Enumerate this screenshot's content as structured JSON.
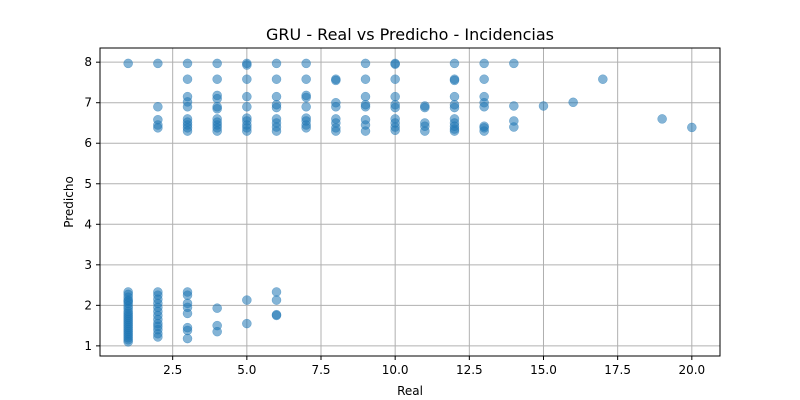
{
  "chart_data": {
    "type": "scatter",
    "title": "GRU - Real vs Predicho - Incidencias",
    "xlabel": "Real",
    "ylabel": "Predicho",
    "xlim": [
      0.05,
      20.95
    ],
    "ylim": [
      0.75,
      8.35
    ],
    "xticks": [
      2.5,
      5.0,
      7.5,
      10.0,
      12.5,
      15.0,
      17.5,
      20.0
    ],
    "xtick_labels": [
      "2.5",
      "5.0",
      "7.5",
      "10.0",
      "12.5",
      "15.0",
      "17.5",
      "20.0"
    ],
    "yticks": [
      1,
      2,
      3,
      4,
      5,
      6,
      7,
      8
    ],
    "ytick_labels": [
      "1",
      "2",
      "3",
      "4",
      "5",
      "6",
      "7",
      "8"
    ],
    "grid": true,
    "marker_color": "#1f77b4",
    "marker_alpha": 0.55,
    "series": [
      {
        "points": [
          [
            1,
            7.97
          ],
          [
            1,
            2.33
          ],
          [
            1,
            2.27
          ],
          [
            1,
            2.2
          ],
          [
            1,
            2.13
          ],
          [
            1,
            2.1
          ],
          [
            1,
            2.05
          ],
          [
            1,
            1.98
          ],
          [
            1,
            1.92
          ],
          [
            1,
            1.85
          ],
          [
            1,
            1.8
          ],
          [
            1,
            1.75
          ],
          [
            1,
            1.7
          ],
          [
            1,
            1.65
          ],
          [
            1,
            1.6
          ],
          [
            1,
            1.55
          ],
          [
            1,
            1.5
          ],
          [
            1,
            1.45
          ],
          [
            1,
            1.4
          ],
          [
            1,
            1.35
          ],
          [
            1,
            1.3
          ],
          [
            1,
            1.25
          ],
          [
            1,
            1.2
          ],
          [
            1,
            1.15
          ],
          [
            1,
            1.1
          ],
          [
            2,
            7.97
          ],
          [
            2,
            6.9
          ],
          [
            2,
            6.58
          ],
          [
            2,
            6.45
          ],
          [
            2,
            6.38
          ],
          [
            2,
            2.33
          ],
          [
            2,
            2.25
          ],
          [
            2,
            2.15
          ],
          [
            2,
            2.05
          ],
          [
            2,
            1.95
          ],
          [
            2,
            1.85
          ],
          [
            2,
            1.75
          ],
          [
            2,
            1.65
          ],
          [
            2,
            1.55
          ],
          [
            2,
            1.48
          ],
          [
            2,
            1.4
          ],
          [
            2,
            1.3
          ],
          [
            2,
            1.22
          ],
          [
            3,
            7.97
          ],
          [
            3,
            7.58
          ],
          [
            3,
            7.15
          ],
          [
            3,
            7.02
          ],
          [
            3,
            6.9
          ],
          [
            3,
            6.6
          ],
          [
            3,
            6.52
          ],
          [
            3,
            6.45
          ],
          [
            3,
            6.38
          ],
          [
            3,
            6.3
          ],
          [
            3,
            2.33
          ],
          [
            3,
            2.25
          ],
          [
            3,
            2.05
          ],
          [
            3,
            1.95
          ],
          [
            3,
            1.8
          ],
          [
            3,
            1.45
          ],
          [
            3,
            1.38
          ],
          [
            3,
            1.18
          ],
          [
            4,
            7.97
          ],
          [
            4,
            7.58
          ],
          [
            4,
            7.18
          ],
          [
            4,
            7.1
          ],
          [
            4,
            6.9
          ],
          [
            4,
            6.85
          ],
          [
            4,
            6.6
          ],
          [
            4,
            6.52
          ],
          [
            4,
            6.45
          ],
          [
            4,
            6.38
          ],
          [
            4,
            6.3
          ],
          [
            4,
            1.93
          ],
          [
            4,
            1.5
          ],
          [
            4,
            1.35
          ],
          [
            5,
            7.97
          ],
          [
            5,
            7.93
          ],
          [
            5,
            7.58
          ],
          [
            5,
            7.15
          ],
          [
            5,
            6.9
          ],
          [
            5,
            6.62
          ],
          [
            5,
            6.55
          ],
          [
            5,
            6.45
          ],
          [
            5,
            6.38
          ],
          [
            5,
            6.3
          ],
          [
            5,
            2.13
          ],
          [
            5,
            1.55
          ],
          [
            6,
            7.97
          ],
          [
            6,
            7.58
          ],
          [
            6,
            7.15
          ],
          [
            6,
            6.95
          ],
          [
            6,
            6.88
          ],
          [
            6,
            6.6
          ],
          [
            6,
            6.5
          ],
          [
            6,
            6.4
          ],
          [
            6,
            6.3
          ],
          [
            6,
            2.33
          ],
          [
            6,
            2.13
          ],
          [
            6,
            1.77
          ],
          [
            6,
            1.75
          ],
          [
            7,
            7.97
          ],
          [
            7,
            7.58
          ],
          [
            7,
            7.18
          ],
          [
            7,
            7.13
          ],
          [
            7,
            6.9
          ],
          [
            7,
            6.62
          ],
          [
            7,
            6.55
          ],
          [
            7,
            6.45
          ],
          [
            7,
            6.38
          ],
          [
            8,
            7.58
          ],
          [
            8,
            7.55
          ],
          [
            8,
            7.0
          ],
          [
            8,
            6.9
          ],
          [
            8,
            6.6
          ],
          [
            8,
            6.5
          ],
          [
            8,
            6.38
          ],
          [
            8,
            6.3
          ],
          [
            9,
            7.97
          ],
          [
            9,
            7.58
          ],
          [
            9,
            7.15
          ],
          [
            9,
            6.95
          ],
          [
            9,
            6.9
          ],
          [
            9,
            6.58
          ],
          [
            9,
            6.45
          ],
          [
            9,
            6.3
          ],
          [
            10,
            7.97
          ],
          [
            10,
            7.95
          ],
          [
            10,
            7.58
          ],
          [
            10,
            7.15
          ],
          [
            10,
            6.95
          ],
          [
            10,
            6.88
          ],
          [
            10,
            6.6
          ],
          [
            10,
            6.5
          ],
          [
            10,
            6.4
          ],
          [
            10,
            6.32
          ],
          [
            11,
            6.92
          ],
          [
            11,
            6.88
          ],
          [
            11,
            6.5
          ],
          [
            11,
            6.42
          ],
          [
            11,
            6.3
          ],
          [
            12,
            7.97
          ],
          [
            12,
            7.58
          ],
          [
            12,
            7.55
          ],
          [
            12,
            7.15
          ],
          [
            12,
            6.95
          ],
          [
            12,
            6.88
          ],
          [
            12,
            6.6
          ],
          [
            12,
            6.5
          ],
          [
            12,
            6.42
          ],
          [
            12,
            6.35
          ],
          [
            12,
            6.3
          ],
          [
            13,
            7.97
          ],
          [
            13,
            7.58
          ],
          [
            13,
            7.15
          ],
          [
            13,
            7.0
          ],
          [
            13,
            6.9
          ],
          [
            13,
            6.42
          ],
          [
            13,
            6.38
          ],
          [
            13,
            6.3
          ],
          [
            14,
            7.97
          ],
          [
            14,
            6.92
          ],
          [
            14,
            6.55
          ],
          [
            14,
            6.4
          ],
          [
            15,
            6.92
          ],
          [
            16,
            7.01
          ],
          [
            17,
            7.58
          ],
          [
            19,
            6.6
          ],
          [
            20,
            6.39
          ]
        ]
      }
    ]
  }
}
